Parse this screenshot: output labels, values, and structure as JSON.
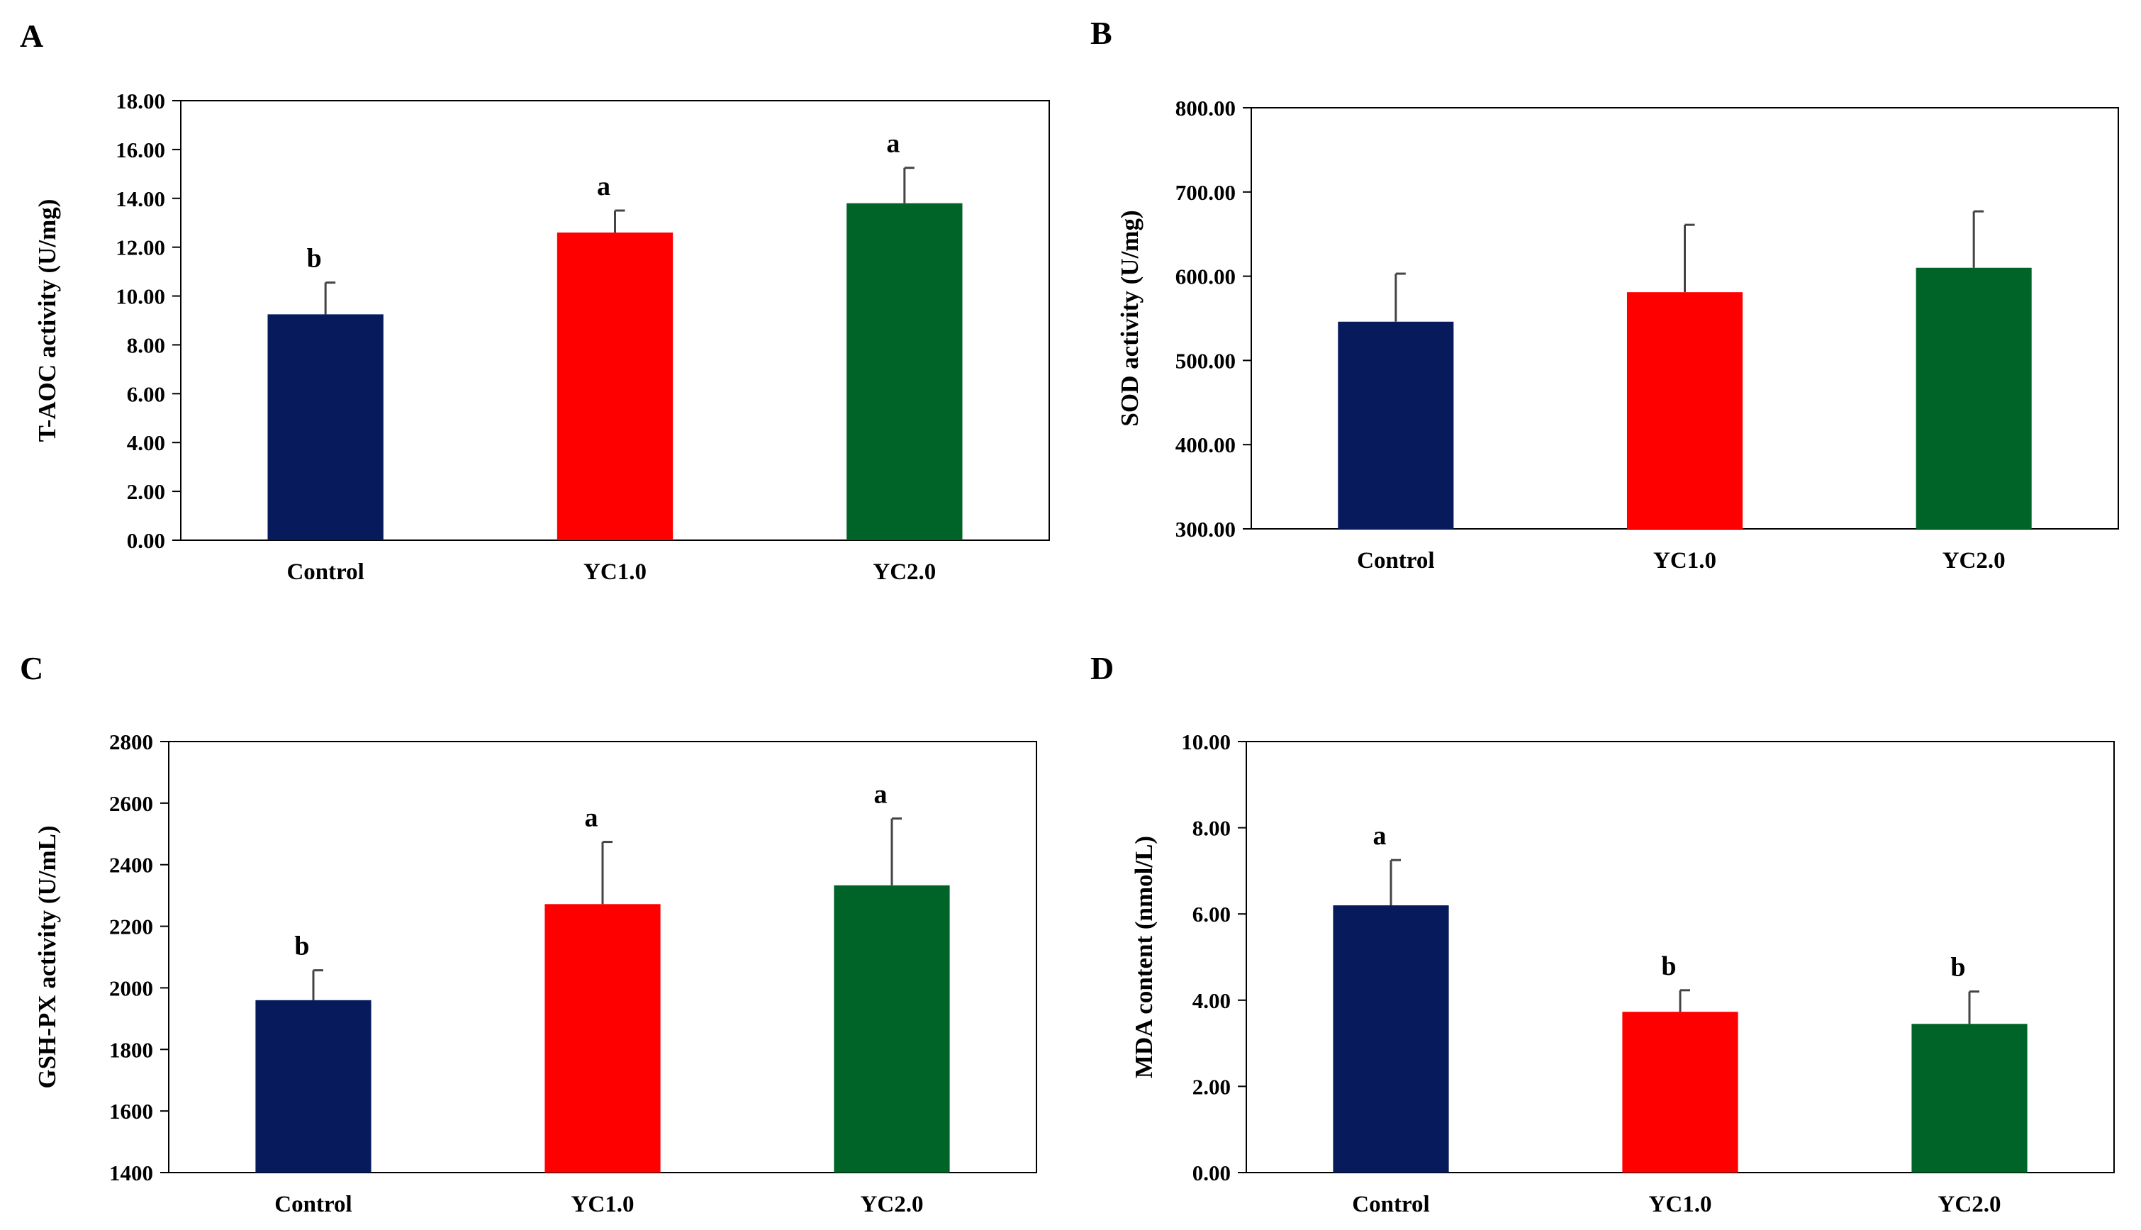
{
  "colors": {
    "Control": "#061a5c",
    "YC1.0": "#ff0000",
    "YC2.0": "#006428",
    "axis": "#000000",
    "error_bar": "#444444"
  },
  "chart_data": [
    {
      "panel": "A",
      "type": "bar",
      "ylabel": "T-AOC activity (U/mg)",
      "categories": [
        "Control",
        "YC1.0",
        "YC2.0"
      ],
      "values": [
        9.25,
        12.6,
        13.8
      ],
      "errors": [
        1.3,
        0.9,
        1.45
      ],
      "significance": [
        "b",
        "a",
        "a"
      ],
      "ylim": [
        0,
        18
      ],
      "yticks": [
        "0.00",
        "2.00",
        "4.00",
        "6.00",
        "8.00",
        "10.00",
        "12.00",
        "14.00",
        "16.00",
        "18.00"
      ]
    },
    {
      "panel": "B",
      "type": "bar",
      "ylabel": "SOD activity (U/mg)",
      "categories": [
        "Control",
        "YC1.0",
        "YC2.0"
      ],
      "values": [
        546,
        581,
        610
      ],
      "errors": [
        57,
        80,
        67
      ],
      "significance": [
        "",
        "",
        ""
      ],
      "ylim": [
        300,
        800
      ],
      "yticks": [
        "300.00",
        "400.00",
        "500.00",
        "600.00",
        "700.00",
        "800.00"
      ]
    },
    {
      "panel": "C",
      "type": "bar",
      "ylabel": "GSH-PX activity (U/mL)",
      "categories": [
        "Control",
        "YC1.0",
        "YC2.0"
      ],
      "values": [
        1960,
        2272,
        2333
      ],
      "errors": [
        97,
        202,
        217
      ],
      "significance": [
        "b",
        "a",
        "a"
      ],
      "ylim": [
        1400,
        2800
      ],
      "yticks": [
        "1400",
        "1600",
        "1800",
        "2000",
        "2200",
        "2400",
        "2600",
        "2800"
      ]
    },
    {
      "panel": "D",
      "type": "bar",
      "ylabel": "MDA content (nmol/L)",
      "categories": [
        "Control",
        "YC1.0",
        "YC2.0"
      ],
      "values": [
        6.2,
        3.73,
        3.45
      ],
      "errors": [
        1.05,
        0.5,
        0.75
      ],
      "significance": [
        "a",
        "b",
        "b"
      ],
      "ylim": [
        0,
        10
      ],
      "yticks": [
        "0.00",
        "2.00",
        "4.00",
        "6.00",
        "8.00",
        "10.00"
      ]
    }
  ]
}
